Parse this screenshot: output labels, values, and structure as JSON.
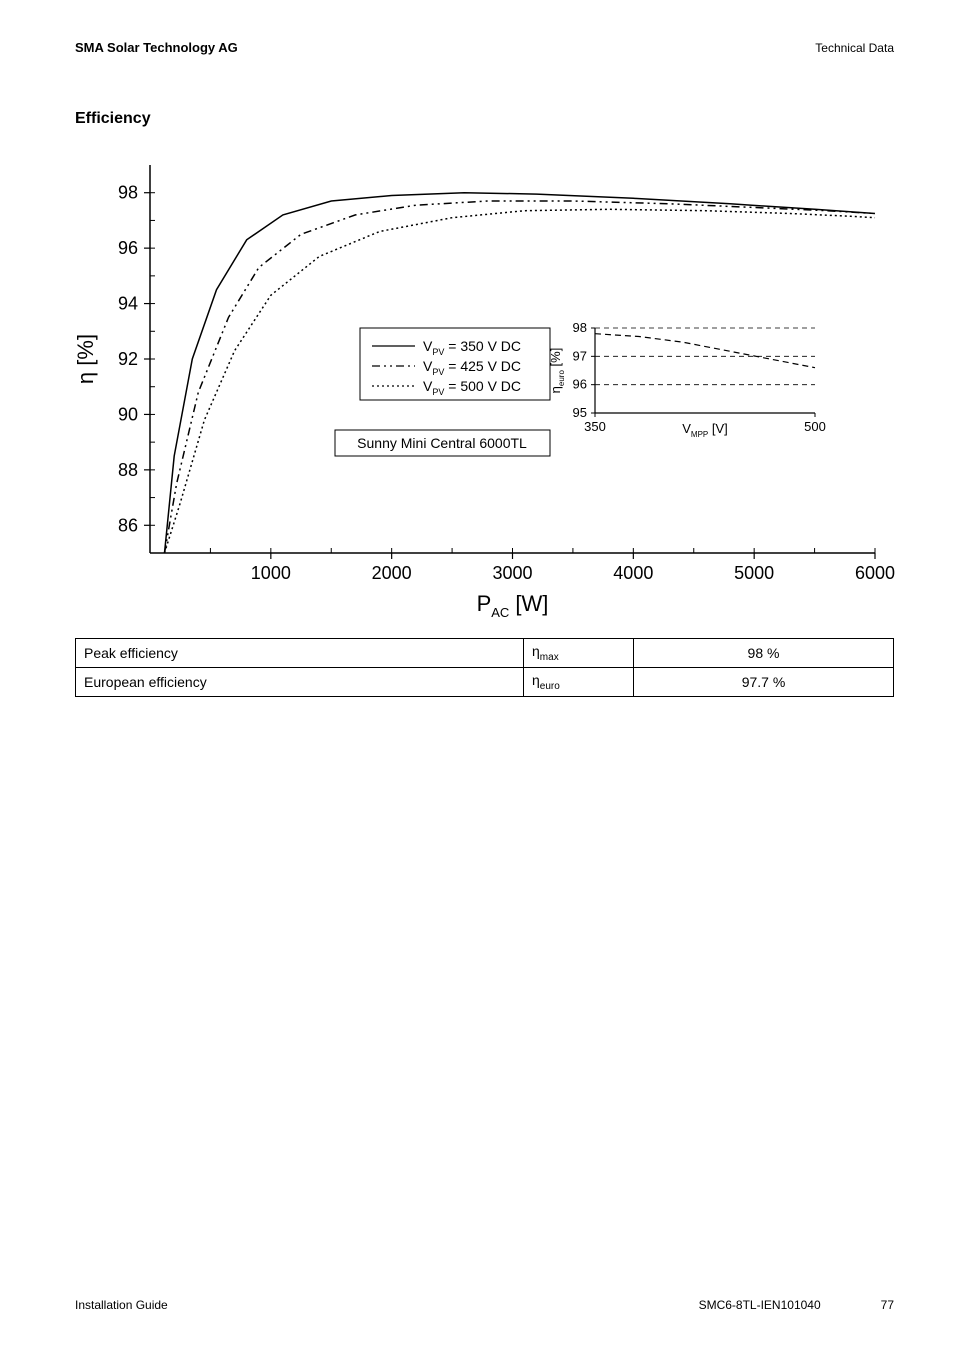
{
  "header": {
    "company": "SMA Solar Technology AG",
    "category": "Technical Data"
  },
  "section_title": "Efficiency",
  "chart": {
    "type": "line",
    "background_color": "#ffffff",
    "axis_color": "#000000",
    "x": {
      "label": "P",
      "label_sub": "AC",
      "unit": "[W]",
      "min": 0,
      "max": 6000,
      "ticks": [
        1000,
        2000,
        3000,
        4000,
        5000,
        6000
      ],
      "label_fontsize": 20
    },
    "y": {
      "label": "η [%]",
      "min": 85,
      "max": 99,
      "ticks": [
        86,
        88,
        90,
        92,
        94,
        96,
        98
      ],
      "label_fontsize": 20
    },
    "series": [
      {
        "name": "V_PV = 350 V DC",
        "legend_prefix": "V",
        "legend_sub": "PV",
        "legend_suffix": " = 350 V DC",
        "color": "#000000",
        "style": "solid",
        "width": 1.5,
        "points": [
          [
            120,
            85.0
          ],
          [
            200,
            88.5
          ],
          [
            350,
            92.0
          ],
          [
            550,
            94.5
          ],
          [
            800,
            96.3
          ],
          [
            1100,
            97.2
          ],
          [
            1500,
            97.7
          ],
          [
            2000,
            97.9
          ],
          [
            2600,
            98.0
          ],
          [
            3200,
            97.95
          ],
          [
            4000,
            97.8
          ],
          [
            4800,
            97.6
          ],
          [
            5500,
            97.4
          ],
          [
            6000,
            97.25
          ]
        ]
      },
      {
        "name": "V_PV = 425 V DC",
        "legend_prefix": "V",
        "legend_sub": "PV",
        "legend_suffix": " = 425 V DC",
        "color": "#000000",
        "style": "dash-dot-dot",
        "dasharray": "8 4 2 4 2 4",
        "width": 1.5,
        "points": [
          [
            120,
            85.0
          ],
          [
            220,
            87.5
          ],
          [
            400,
            90.8
          ],
          [
            650,
            93.5
          ],
          [
            900,
            95.3
          ],
          [
            1250,
            96.5
          ],
          [
            1700,
            97.2
          ],
          [
            2200,
            97.55
          ],
          [
            2800,
            97.7
          ],
          [
            3500,
            97.7
          ],
          [
            4300,
            97.6
          ],
          [
            5100,
            97.45
          ],
          [
            5600,
            97.35
          ],
          [
            6000,
            97.25
          ]
        ]
      },
      {
        "name": "V_PV = 500 V DC",
        "legend_prefix": "V",
        "legend_sub": "PV",
        "legend_suffix": " = 500 V DC",
        "color": "#000000",
        "style": "dotted",
        "dasharray": "2 3",
        "width": 1.5,
        "points": [
          [
            120,
            85.0
          ],
          [
            250,
            86.8
          ],
          [
            450,
            89.8
          ],
          [
            700,
            92.3
          ],
          [
            1000,
            94.3
          ],
          [
            1400,
            95.7
          ],
          [
            1900,
            96.6
          ],
          [
            2500,
            97.1
          ],
          [
            3100,
            97.35
          ],
          [
            3800,
            97.4
          ],
          [
            4600,
            97.35
          ],
          [
            5300,
            97.25
          ],
          [
            5800,
            97.15
          ],
          [
            6000,
            97.1
          ]
        ]
      }
    ],
    "device_label": "Sunny Mini Central 6000TL",
    "inset": {
      "type": "line",
      "x": {
        "label": "V",
        "label_sub": "MPP",
        "unit": "[V]",
        "min": 350,
        "max": 500,
        "ticks": [
          350,
          500
        ]
      },
      "y": {
        "label": "η",
        "label_sub": "euro",
        "unit": "[%]",
        "min": 95,
        "max": 98,
        "ticks": [
          95,
          96,
          97,
          98
        ]
      },
      "series": {
        "color": "#000000",
        "style": "dashed",
        "dasharray": "6 4",
        "width": 1.2,
        "points": [
          [
            350,
            97.8
          ],
          [
            380,
            97.7
          ],
          [
            410,
            97.5
          ],
          [
            440,
            97.2
          ],
          [
            470,
            96.9
          ],
          [
            500,
            96.6
          ]
        ]
      }
    }
  },
  "table": {
    "rows": [
      {
        "label": "Peak efficiency",
        "symbol": "η",
        "symbol_sub": "max",
        "value": "98 %"
      },
      {
        "label": "European efficiency",
        "symbol": "η",
        "symbol_sub": "euro",
        "value": "97.7 %"
      }
    ]
  },
  "footer": {
    "left": "Installation Guide",
    "docid": "SMC6-8TL-IEN101040",
    "page": "77"
  }
}
